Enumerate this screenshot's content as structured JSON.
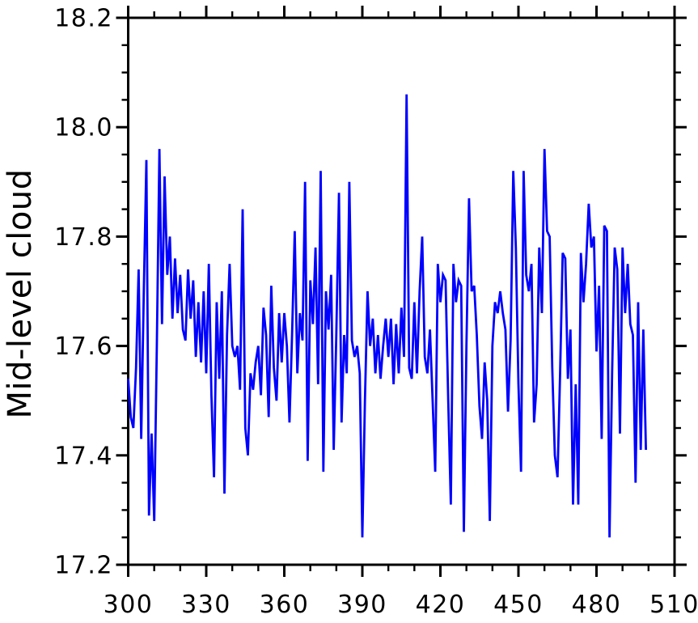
{
  "figure": {
    "background": "#ffffff"
  },
  "chart_data": {
    "type": "line",
    "title": "",
    "xlabel": "",
    "ylabel": "Mid-level cloud",
    "xlim": [
      300,
      510
    ],
    "ylim": [
      17.2,
      18.2
    ],
    "grid": false,
    "legend": null,
    "axis_color": "#000000",
    "line_color": "#0000ff",
    "x_major_ticks": [
      300,
      330,
      360,
      390,
      420,
      450,
      480,
      510
    ],
    "x_tick_labels": [
      "300",
      "330",
      "360",
      "390",
      "420",
      "450",
      "480",
      "510"
    ],
    "x_minor_tick_step": 10,
    "y_major_ticks": [
      17.2,
      17.4,
      17.6,
      17.8,
      18.0,
      18.2
    ],
    "y_tick_labels": [
      "17.2",
      "17.4",
      "17.6",
      "17.8",
      "18.0",
      "18.2"
    ],
    "y_minor_tick_step": 0.05,
    "tick_style": "outward-all-sides",
    "series": [
      {
        "name": "Mid-level cloud",
        "color": "#0000ff",
        "x_start": 300,
        "x_step": 1,
        "values": [
          17.54,
          17.47,
          17.45,
          17.56,
          17.74,
          17.43,
          17.7,
          17.94,
          17.29,
          17.44,
          17.28,
          17.6,
          17.96,
          17.64,
          17.91,
          17.73,
          17.8,
          17.65,
          17.76,
          17.66,
          17.73,
          17.63,
          17.61,
          17.74,
          17.65,
          17.72,
          17.58,
          17.68,
          17.57,
          17.7,
          17.55,
          17.75,
          17.51,
          17.36,
          17.68,
          17.54,
          17.7,
          17.33,
          17.62,
          17.75,
          17.6,
          17.58,
          17.6,
          17.52,
          17.85,
          17.45,
          17.4,
          17.55,
          17.52,
          17.57,
          17.6,
          17.51,
          17.67,
          17.62,
          17.47,
          17.71,
          17.56,
          17.5,
          17.66,
          17.57,
          17.66,
          17.6,
          17.46,
          17.62,
          17.81,
          17.55,
          17.66,
          17.61,
          17.9,
          17.39,
          17.72,
          17.64,
          17.78,
          17.53,
          17.92,
          17.37,
          17.7,
          17.63,
          17.73,
          17.41,
          17.62,
          17.88,
          17.46,
          17.62,
          17.55,
          17.9,
          17.61,
          17.58,
          17.6,
          17.55,
          17.25,
          17.5,
          17.7,
          17.6,
          17.65,
          17.55,
          17.62,
          17.54,
          17.6,
          17.65,
          17.58,
          17.65,
          17.53,
          17.64,
          17.55,
          17.67,
          17.58,
          18.06,
          17.56,
          17.54,
          17.68,
          17.55,
          17.7,
          17.8,
          17.58,
          17.55,
          17.63,
          17.5,
          17.37,
          17.75,
          17.68,
          17.73,
          17.72,
          17.5,
          17.31,
          17.75,
          17.68,
          17.72,
          17.71,
          17.26,
          17.6,
          17.87,
          17.7,
          17.71,
          17.62,
          17.49,
          17.43,
          17.57,
          17.5,
          17.28,
          17.6,
          17.68,
          17.66,
          17.7,
          17.66,
          17.63,
          17.48,
          17.61,
          17.92,
          17.78,
          17.53,
          17.37,
          17.92,
          17.73,
          17.7,
          17.75,
          17.46,
          17.53,
          17.78,
          17.66,
          17.96,
          17.81,
          17.8,
          17.56,
          17.4,
          17.36,
          17.55,
          17.77,
          17.76,
          17.54,
          17.63,
          17.31,
          17.53,
          17.31,
          17.77,
          17.68,
          17.75,
          17.86,
          17.78,
          17.8,
          17.59,
          17.71,
          17.43,
          17.82,
          17.81,
          17.25,
          17.55,
          17.78,
          17.74,
          17.44,
          17.78,
          17.66,
          17.75,
          17.64,
          17.62,
          17.35,
          17.68,
          17.41,
          17.63,
          17.41
        ]
      }
    ]
  }
}
